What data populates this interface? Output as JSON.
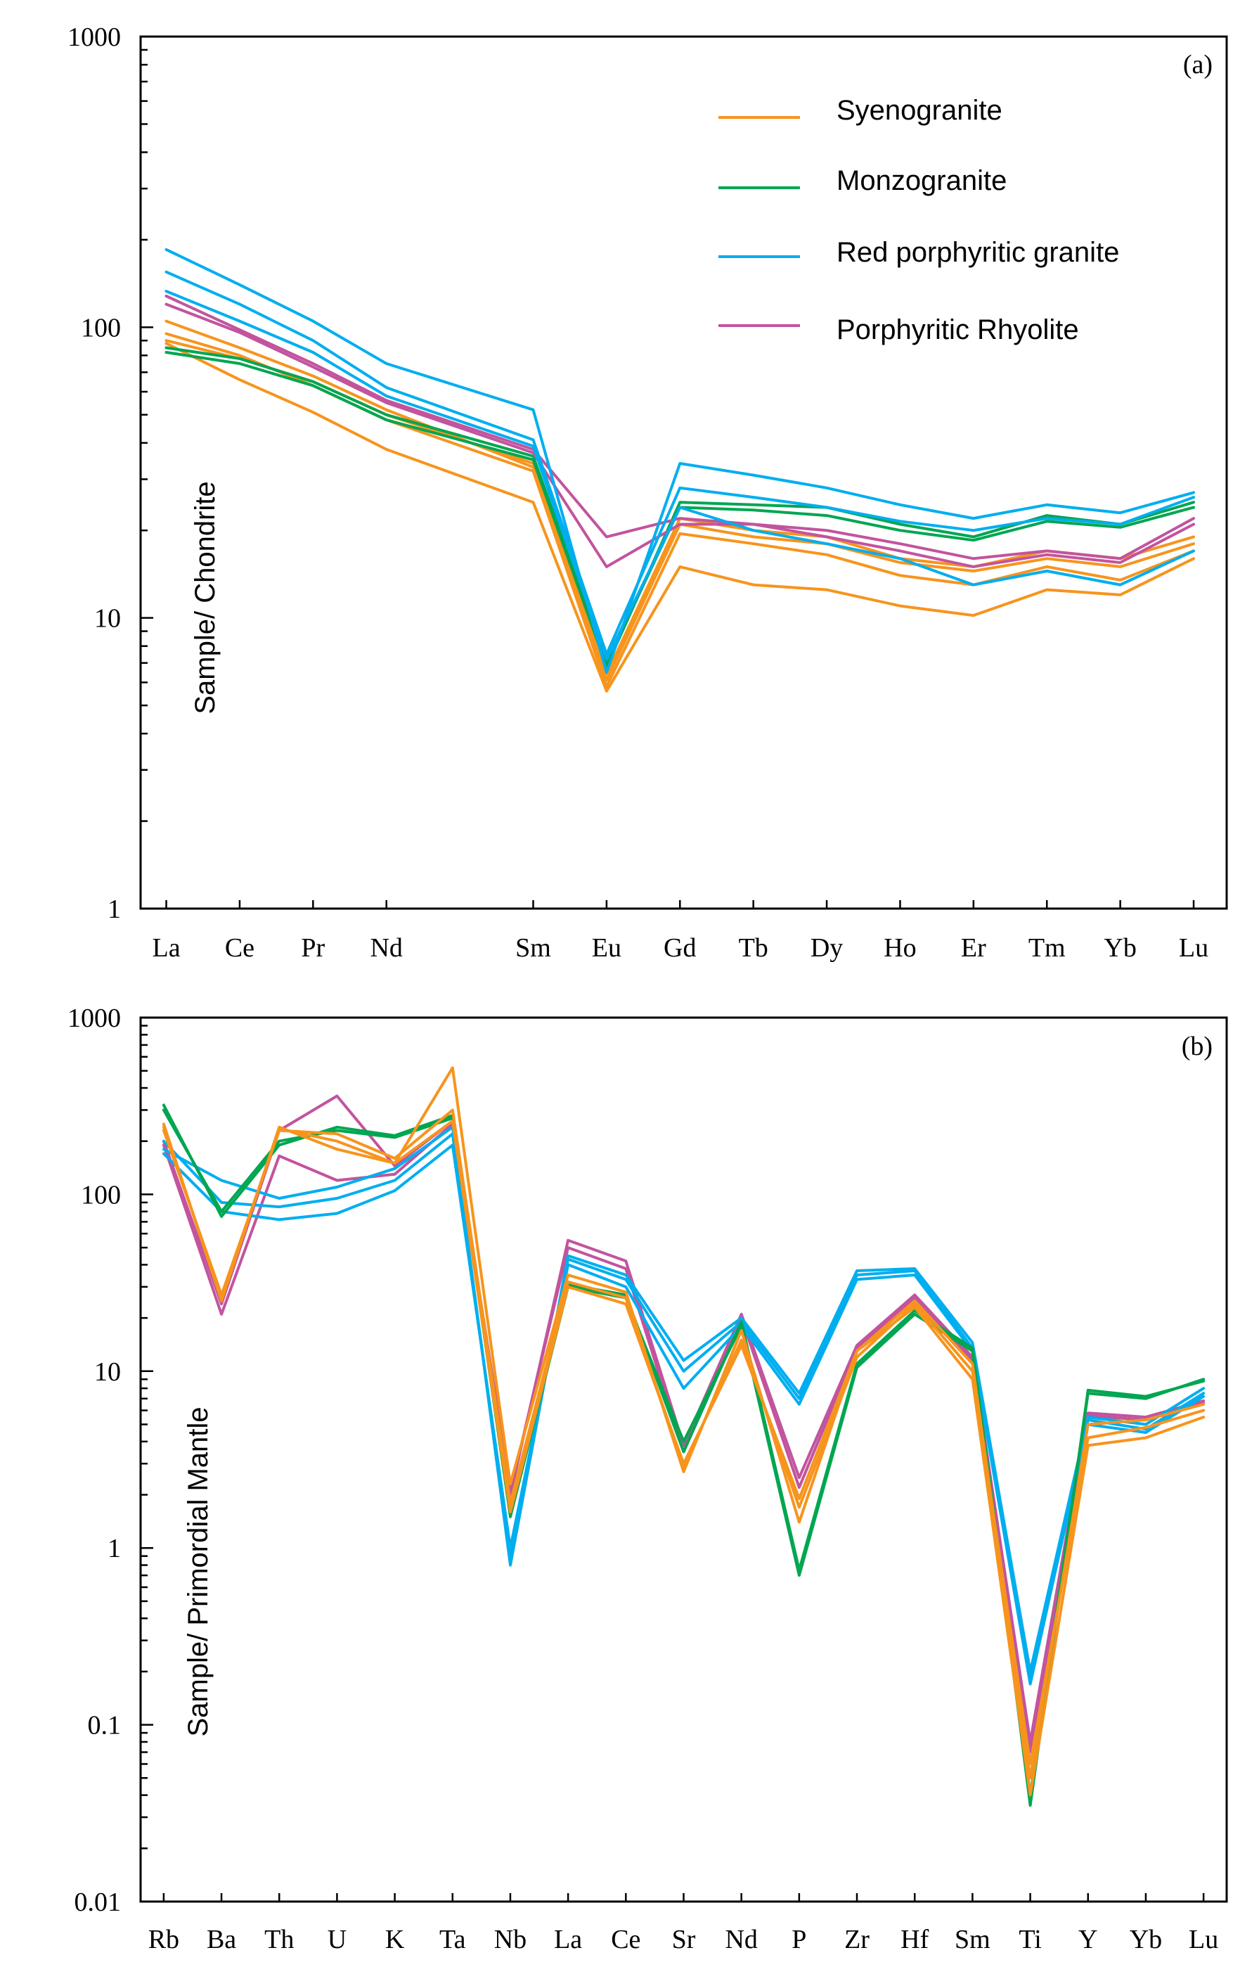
{
  "colors": {
    "Syenogranite": "#F7941D",
    "Monzogranite": "#00A651",
    "Red porphyritic granite": "#00AEEF",
    "Porphyritic Rhyolite": "#C2549E"
  },
  "chart_data": [
    {
      "id": "a",
      "type": "line",
      "panel_label": "(a)",
      "ylabel": "Sample/ Chondrite",
      "xlabel": "",
      "yscale": "log",
      "ylim": [
        1,
        1000
      ],
      "yticks": [
        {
          "value": 1,
          "label": "1"
        },
        {
          "value": 10,
          "label": "10"
        },
        {
          "value": 100,
          "label": "100"
        },
        {
          "value": 1000,
          "label": "1000"
        }
      ],
      "categories": [
        "La",
        "Ce",
        "Pr",
        "Nd",
        "Sm",
        "Eu",
        "Gd",
        "Tb",
        "Dy",
        "Ho",
        "Er",
        "Tm",
        "Yb",
        "Lu"
      ],
      "category_positions": [
        0,
        1,
        2,
        3,
        5,
        6,
        7,
        8,
        9,
        10,
        11,
        12,
        13,
        14
      ],
      "x_range": [
        -0.35,
        14.45
      ],
      "legend": [
        "Syenogranite",
        "Monzogranite",
        "Red porphyritic granite",
        "Porphyritic Rhyolite"
      ],
      "legend_position": "top-right",
      "series": [
        {
          "name": "Syenogranite",
          "values": [
            105,
            85,
            68,
            52,
            33,
            6.1,
            21,
            19,
            18,
            15.5,
            14.5,
            16,
            15,
            18
          ]
        },
        {
          "name": "Syenogranite",
          "values": [
            95,
            80,
            63,
            48,
            32,
            5.8,
            19.5,
            18,
            16.5,
            14,
            13,
            15,
            13.5,
            17
          ]
        },
        {
          "name": "Syenogranite",
          "values": [
            88,
            66,
            51,
            38,
            25,
            5.6,
            15,
            13,
            12.5,
            11,
            10.2,
            12.5,
            12,
            16
          ]
        },
        {
          "name": "Syenogranite",
          "values": [
            90,
            78,
            65,
            50,
            34,
            6.4,
            22,
            20,
            19,
            16,
            15,
            17,
            16,
            19
          ]
        },
        {
          "name": "Monzogranite",
          "values": [
            82,
            75,
            63,
            48,
            35,
            6.8,
            25,
            24.5,
            24,
            21,
            19,
            22.5,
            21,
            25
          ]
        },
        {
          "name": "Monzogranite",
          "values": [
            85,
            78,
            65,
            50,
            36,
            7,
            24,
            23.5,
            22.5,
            20,
            18.5,
            21.5,
            20.5,
            24
          ]
        },
        {
          "name": "Red porphyritic granite",
          "values": [
            185,
            140,
            105,
            75,
            52,
            6.5,
            34,
            31,
            28,
            24.5,
            22,
            24.5,
            23,
            27
          ]
        },
        {
          "name": "Red porphyritic granite",
          "values": [
            155,
            120,
            90,
            62,
            41,
            7.5,
            28,
            26,
            24,
            21.5,
            20,
            22,
            21,
            26
          ]
        },
        {
          "name": "Red porphyritic granite",
          "values": [
            133,
            105,
            82,
            58,
            39,
            7.2,
            24,
            20,
            18,
            16,
            13,
            14.5,
            13,
            17
          ]
        },
        {
          "name": "Porphyritic Rhyolite",
          "values": [
            128,
            98,
            75,
            56,
            38,
            19,
            22,
            21,
            20,
            18,
            16,
            17,
            16,
            22
          ]
        },
        {
          "name": "Porphyritic Rhyolite",
          "values": [
            120,
            96,
            73,
            55,
            37,
            15,
            21,
            21,
            19,
            17,
            15,
            16.5,
            15.5,
            21
          ]
        }
      ]
    },
    {
      "id": "b",
      "type": "line",
      "panel_label": "(b)",
      "ylabel": "Sample/ Primordial Mantle",
      "xlabel": "",
      "yscale": "log",
      "ylim": [
        0.01,
        1000
      ],
      "yticks": [
        {
          "value": 0.01,
          "label": "0.01"
        },
        {
          "value": 0.1,
          "label": "0.1"
        },
        {
          "value": 1,
          "label": "1"
        },
        {
          "value": 10,
          "label": "10"
        },
        {
          "value": 100,
          "label": "100"
        },
        {
          "value": 1000,
          "label": "1000"
        }
      ],
      "categories": [
        "Rb",
        "Ba",
        "Th",
        "U",
        "K",
        "Ta",
        "Nb",
        "La",
        "Ce",
        "Sr",
        "Nd",
        "P",
        "Zr",
        "Hf",
        "Sm",
        "Ti",
        "Y",
        "Yb",
        "Lu"
      ],
      "category_positions": [
        0,
        1,
        2,
        3,
        4,
        5,
        6,
        7,
        8,
        9,
        10,
        11,
        12,
        13,
        14,
        15,
        16,
        17,
        18
      ],
      "x_range": [
        -0.4,
        18.4
      ],
      "series": [
        {
          "name": "Syenogranite",
          "values": [
            250,
            25,
            240,
            180,
            150,
            520,
            2.3,
            35,
            28,
            2.7,
            17,
            1.4,
            13,
            23,
            9,
            0.04,
            3.8,
            4.2,
            5.5
          ]
        },
        {
          "name": "Syenogranite",
          "values": [
            230,
            27,
            230,
            220,
            160,
            300,
            1.8,
            32,
            26,
            2.9,
            15,
            1.7,
            12,
            24,
            10,
            0.06,
            4.2,
            4.8,
            6.0
          ]
        },
        {
          "name": "Syenogranite",
          "values": [
            240,
            26,
            235,
            200,
            150,
            260,
            1.6,
            30,
            24,
            3.0,
            14,
            1.9,
            13,
            25,
            11,
            0.05,
            5.0,
            5.3,
            6.5
          ]
        },
        {
          "name": "Monzogranite",
          "values": [
            320,
            75,
            190,
            240,
            215,
            280,
            1.5,
            30,
            26,
            4.0,
            18,
            0.7,
            10.5,
            21,
            13,
            0.035,
            7.8,
            7.2,
            8.8
          ]
        },
        {
          "name": "Monzogranite",
          "values": [
            300,
            80,
            200,
            230,
            210,
            270,
            1.6,
            31,
            27,
            3.5,
            19,
            0.75,
            11,
            22,
            13.5,
            0.04,
            7.5,
            7.0,
            9.0
          ]
        },
        {
          "name": "Red porphyritic granite",
          "values": [
            180,
            120,
            95,
            110,
            140,
            240,
            0.8,
            45,
            35,
            11.5,
            20,
            7.5,
            37,
            38,
            14.5,
            0.2,
            5.5,
            5.0,
            8.0
          ]
        },
        {
          "name": "Red porphyritic granite",
          "values": [
            200,
            90,
            85,
            95,
            120,
            220,
            0.9,
            43,
            33,
            10,
            19,
            7.0,
            35,
            37,
            13.5,
            0.18,
            5.3,
            4.7,
            7.5
          ]
        },
        {
          "name": "Red porphyritic granite",
          "values": [
            170,
            80,
            72,
            78,
            105,
            190,
            1.0,
            40,
            30,
            8,
            18,
            6.5,
            33,
            35,
            13,
            0.17,
            5.0,
            4.5,
            7.2
          ]
        },
        {
          "name": "Porphyritic Rhyolite",
          "values": [
            190,
            21,
            165,
            120,
            130,
            250,
            2.0,
            55,
            42,
            3.8,
            21,
            2.5,
            14,
            27,
            12,
            0.08,
            5.8,
            5.5,
            6.8
          ]
        },
        {
          "name": "Porphyritic Rhyolite",
          "values": [
            200,
            24,
            230,
            360,
            145,
            260,
            2.1,
            50,
            38,
            3.5,
            20,
            2.2,
            13.5,
            26,
            11.5,
            0.07,
            5.6,
            5.3,
            6.6
          ]
        }
      ]
    }
  ]
}
